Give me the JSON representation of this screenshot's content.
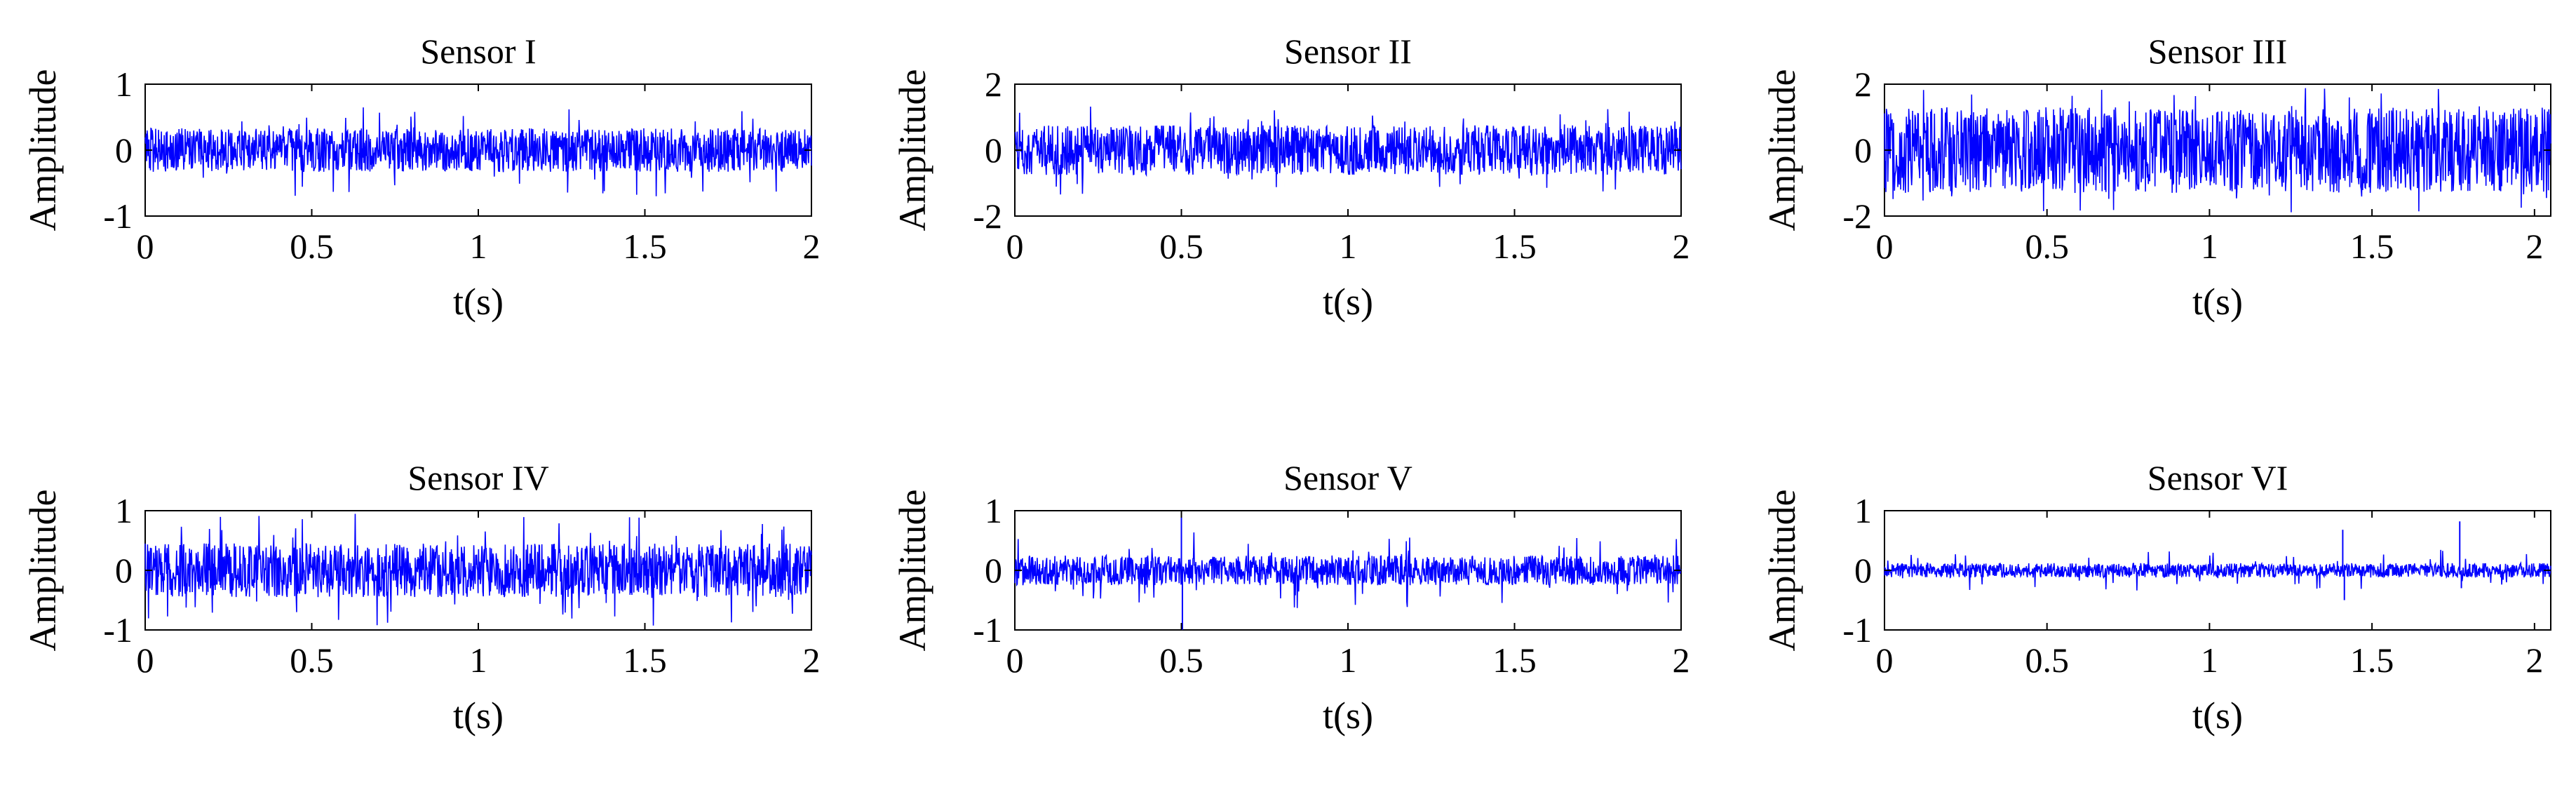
{
  "figure": {
    "description_free": true,
    "trace_color": "#0000ff",
    "axis_color": "#000000",
    "background": "#ffffff"
  },
  "chart_data": [
    {
      "type": "line",
      "title": "Sensor  I",
      "xlabel": "t(s)",
      "ylabel": "Amplitude",
      "xlim": [
        0,
        2
      ],
      "ylim": [
        -1,
        1
      ],
      "xticks": [
        0,
        0.5,
        1,
        1.5,
        2
      ],
      "xtick_labels": [
        "0",
        "0.5",
        "1",
        "1.5",
        "2"
      ],
      "yticks": [
        -1,
        0,
        1
      ],
      "ytick_labels": [
        "-1",
        "0",
        "1"
      ],
      "signal": {
        "kind": "noise",
        "band_amplitude": 0.33,
        "peak_amplitude": 0.7,
        "duration_s": 2,
        "samples": 1400
      }
    },
    {
      "type": "line",
      "title": "Sensor II",
      "xlabel": "t(s)",
      "ylabel": "Amplitude",
      "xlim": [
        0,
        2
      ],
      "ylim": [
        -2,
        2
      ],
      "xticks": [
        0,
        0.5,
        1,
        1.5,
        2
      ],
      "xtick_labels": [
        "0",
        "0.5",
        "1",
        "1.5",
        "2"
      ],
      "yticks": [
        -2,
        0,
        2
      ],
      "ytick_labels": [
        "-2",
        "0",
        "2"
      ],
      "signal": {
        "kind": "noise",
        "band_amplitude": 0.75,
        "peak_amplitude": 1.4,
        "duration_s": 2,
        "samples": 1400
      }
    },
    {
      "type": "line",
      "title": "Sensor III",
      "xlabel": "t(s)",
      "ylabel": "Amplitude",
      "xlim": [
        0,
        2.05
      ],
      "ylim": [
        -2,
        2
      ],
      "xticks": [
        0,
        0.5,
        1,
        1.5,
        2
      ],
      "xtick_labels": [
        "0",
        "0.5",
        "1",
        "1.5",
        "2"
      ],
      "yticks": [
        -2,
        0,
        2
      ],
      "ytick_labels": [
        "-2",
        "0",
        "2"
      ],
      "signal": {
        "kind": "noise",
        "band_amplitude": 1.3,
        "peak_amplitude": 1.9,
        "duration_s": 2.05,
        "samples": 1400
      }
    },
    {
      "type": "line",
      "title": "Sensor IV",
      "xlabel": "t(s)",
      "ylabel": "Amplitude",
      "xlim": [
        0,
        2
      ],
      "ylim": [
        -1,
        1
      ],
      "xticks": [
        0,
        0.5,
        1,
        1.5,
        2
      ],
      "xtick_labels": [
        "0",
        "0.5",
        "1",
        "1.5",
        "2"
      ],
      "yticks": [
        -1,
        0,
        1
      ],
      "ytick_labels": [
        "-1",
        "0",
        "1"
      ],
      "signal": {
        "kind": "noise",
        "band_amplitude": 0.45,
        "peak_amplitude": 0.95,
        "duration_s": 2,
        "samples": 1400
      }
    },
    {
      "type": "line",
      "title": "Sensor V",
      "xlabel": "t(s)",
      "ylabel": "Amplitude",
      "xlim": [
        0,
        2
      ],
      "ylim": [
        -1,
        1
      ],
      "xticks": [
        0,
        0.5,
        1,
        1.5,
        2
      ],
      "xtick_labels": [
        "0",
        "0.5",
        "1",
        "1.5",
        "2"
      ],
      "yticks": [
        -1,
        0,
        1
      ],
      "ytick_labels": [
        "-1",
        "0",
        "1"
      ],
      "signal": {
        "kind": "noise",
        "band_amplitude": 0.25,
        "peak_amplitude": 0.65,
        "duration_s": 2,
        "samples": 1400,
        "spikes": [
          {
            "t": 0.5,
            "value": 1.0
          },
          {
            "t": 0.503,
            "value": -1.0
          }
        ]
      }
    },
    {
      "type": "line",
      "title": "Sensor VI",
      "xlabel": "t(s)",
      "ylabel": "Amplitude",
      "xlim": [
        0,
        2.05
      ],
      "ylim": [
        -1,
        1
      ],
      "xticks": [
        0,
        0.5,
        1,
        1.5,
        2
      ],
      "xtick_labels": [
        "0",
        "0.5",
        "1",
        "1.5",
        "2"
      ],
      "yticks": [
        -1,
        0,
        1
      ],
      "ytick_labels": [
        "-1",
        "0",
        "1"
      ],
      "signal": {
        "kind": "noise",
        "band_amplitude": 0.12,
        "peak_amplitude": 0.35,
        "duration_s": 2.05,
        "samples": 1400,
        "spikes": [
          {
            "t": 1.41,
            "value": 0.68
          },
          {
            "t": 1.415,
            "value": -0.5
          },
          {
            "t": 1.77,
            "value": 0.82
          },
          {
            "t": 1.775,
            "value": -0.3
          }
        ]
      }
    }
  ]
}
